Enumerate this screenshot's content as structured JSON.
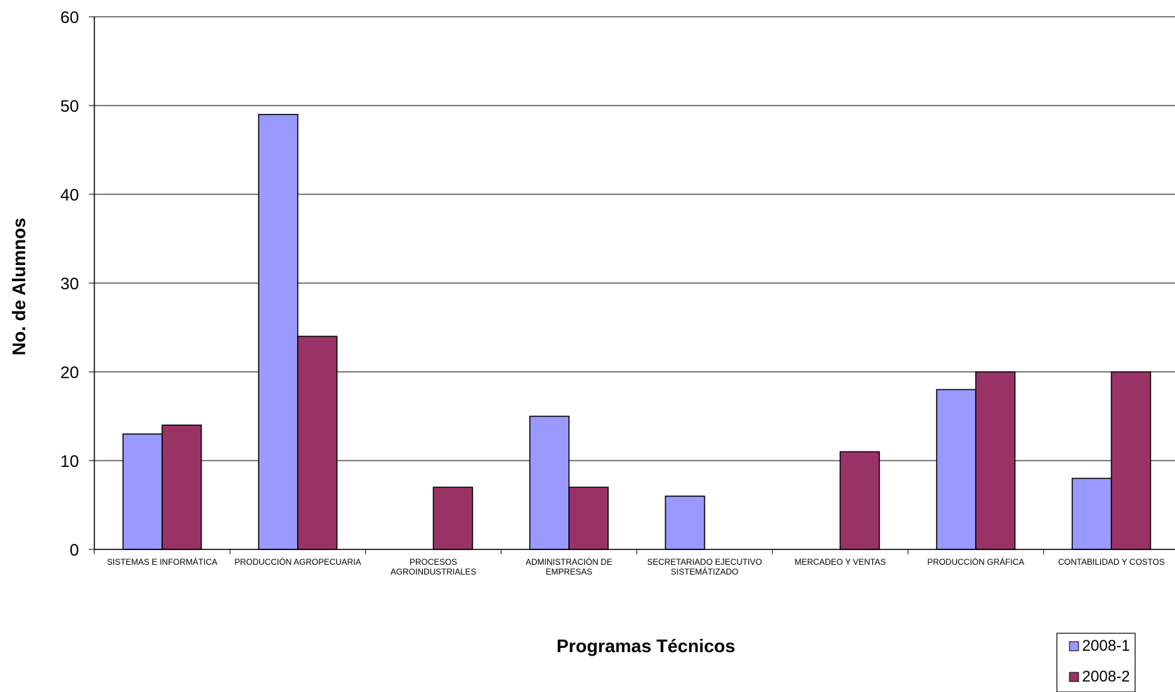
{
  "chart_data": {
    "type": "bar",
    "title": "",
    "xlabel": "Programas Técnicos",
    "ylabel": "No. de Alumnos",
    "ylim": [
      0,
      60
    ],
    "yticks": [
      0,
      10,
      20,
      30,
      40,
      50,
      60
    ],
    "grid": true,
    "legend_position": "bottom-right",
    "categories": [
      "SISTEMAS E INFORMÁTICA",
      "PRODUCCIÓN AGROPECUARIA",
      "PROCESOS AGROINDUSTRIALES",
      "ADMINISTRACIÓN DE EMPRESAS",
      "SECRETARIADO EJECUTIVO SISTEMÁTIZADO",
      "MERCADEO Y VENTAS",
      "PRODUCCIÓN GRÁFICA",
      "CONTABILIDAD Y COSTOS"
    ],
    "category_lines": [
      [
        "SISTEMAS E INFORMÁTICA"
      ],
      [
        "PRODUCCIÓN AGROPECUARIA"
      ],
      [
        "PROCESOS",
        "AGROINDUSTRIALES"
      ],
      [
        "ADMINISTRACIÓN DE",
        "EMPRESAS"
      ],
      [
        "SECRETARIADO EJECUTIVO",
        "SISTEMÁTIZADO"
      ],
      [
        "MERCADEO Y VENTAS"
      ],
      [
        "PRODUCCIÓN GRÁFICA"
      ],
      [
        "CONTABILIDAD Y COSTOS"
      ]
    ],
    "series": [
      {
        "name": "2008-1",
        "color": "#9999ff",
        "values": [
          13,
          49,
          0,
          15,
          6,
          0,
          18,
          8
        ]
      },
      {
        "name": "2008-2",
        "color": "#993366",
        "values": [
          14,
          24,
          7,
          7,
          0,
          11,
          20,
          20
        ]
      }
    ]
  }
}
